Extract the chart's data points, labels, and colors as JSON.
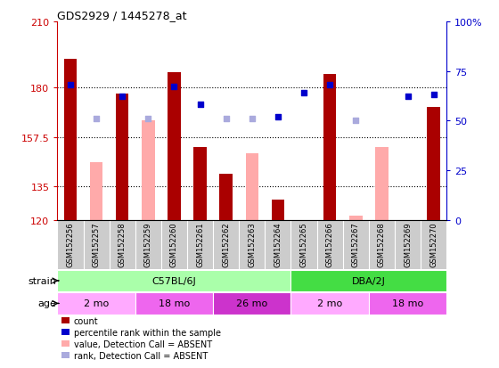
{
  "title": "GDS2929 / 1445278_at",
  "samples": [
    "GSM152256",
    "GSM152257",
    "GSM152258",
    "GSM152259",
    "GSM152260",
    "GSM152261",
    "GSM152262",
    "GSM152263",
    "GSM152264",
    "GSM152265",
    "GSM152266",
    "GSM152267",
    "GSM152268",
    "GSM152269",
    "GSM152270"
  ],
  "count_present": [
    193,
    null,
    177,
    null,
    187,
    153,
    141,
    null,
    129,
    null,
    186,
    null,
    null,
    null,
    171
  ],
  "count_absent": [
    null,
    146,
    null,
    165,
    null,
    null,
    null,
    150,
    null,
    null,
    null,
    122,
    153,
    null,
    null
  ],
  "perc_present": [
    68,
    null,
    62,
    null,
    67,
    58,
    null,
    null,
    52,
    64,
    68,
    null,
    null,
    62,
    63
  ],
  "perc_absent": [
    null,
    51,
    null,
    51,
    null,
    null,
    51,
    51,
    null,
    null,
    null,
    50,
    null,
    null,
    null
  ],
  "y_min": 120,
  "y_max": 210,
  "y_ticks": [
    120,
    135,
    157.5,
    180,
    210
  ],
  "y_tick_labels": [
    "120",
    "135",
    "157.5",
    "180",
    "210"
  ],
  "y2_ticks": [
    0,
    25,
    50,
    75,
    100
  ],
  "y2_tick_labels": [
    "0",
    "25",
    "50",
    "75",
    "100%"
  ],
  "dotted_lines": [
    135,
    157.5,
    180
  ],
  "strain_groups": [
    {
      "label": "C57BL/6J",
      "start": 0,
      "end": 9,
      "color": "#aaffaa"
    },
    {
      "label": "DBA/2J",
      "start": 9,
      "end": 15,
      "color": "#44dd44"
    }
  ],
  "age_groups": [
    {
      "label": "2 mo",
      "start": 0,
      "end": 3,
      "color": "#ffaaff"
    },
    {
      "label": "18 mo",
      "start": 3,
      "end": 6,
      "color": "#ee66ee"
    },
    {
      "label": "26 mo",
      "start": 6,
      "end": 9,
      "color": "#cc33cc"
    },
    {
      "label": "2 mo",
      "start": 9,
      "end": 12,
      "color": "#ffaaff"
    },
    {
      "label": "18 mo",
      "start": 12,
      "end": 15,
      "color": "#ee66ee"
    }
  ],
  "bar_color_present": "#aa0000",
  "bar_color_absent": "#ffaaaa",
  "dot_color_present": "#0000cc",
  "dot_color_absent": "#aaaadd",
  "tick_bg_color": "#cccccc",
  "left_tick_color": "#cc0000",
  "right_tick_color": "#0000cc"
}
